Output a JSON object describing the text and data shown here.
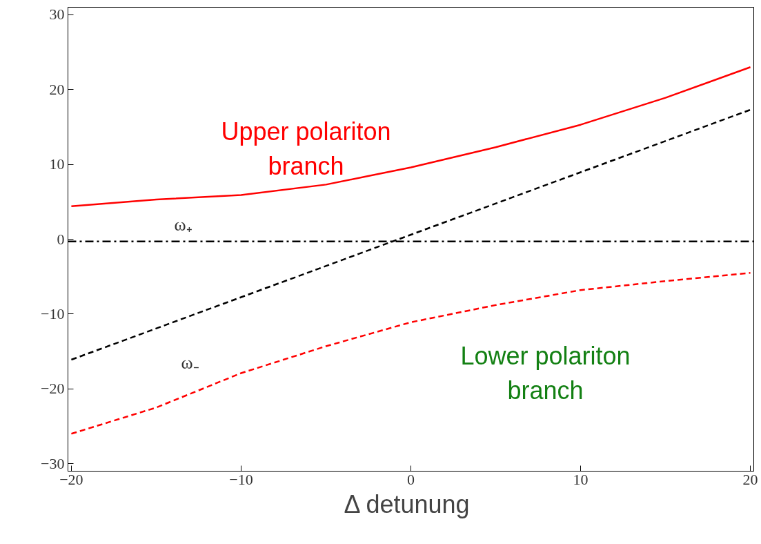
{
  "chart_data": {
    "type": "line",
    "xlabel": "Δ  detunung",
    "x": [
      -20,
      -15,
      -10,
      -5,
      0,
      5,
      10,
      15,
      20
    ],
    "series": [
      {
        "color": "#ff0000",
        "line_style": "solid",
        "values": [
          4.4,
          5.3,
          5.9,
          7.3,
          9.6,
          12.3,
          15.3,
          18.9,
          23
        ]
      },
      {
        "color": "#ff0000",
        "line_style": "dashed",
        "values": [
          -26,
          -22.5,
          -17.9,
          -14.3,
          -11.1,
          -8.8,
          -6.8,
          -5.6,
          -4.5
        ]
      },
      {
        "color": "#000000",
        "line_style": "dashed",
        "x": [
          -20,
          20
        ],
        "values": [
          -16.1,
          17.3
        ]
      }
    ],
    "ref_lines": [
      {
        "axis": "y",
        "value": -0.3,
        "color": "#000000",
        "line_style": "dashdot"
      }
    ],
    "annotations": [
      "Upper polariton\nbranch",
      "ω₊",
      "ω₋",
      "Lower polariton\nbranch"
    ],
    "xlim": [
      -20.2,
      20.2
    ],
    "ylim": [
      -31,
      31
    ],
    "xticks": [
      {
        "value": -20,
        "label": "−20"
      },
      {
        "value": -10,
        "label": "−10"
      },
      0,
      10,
      20
    ],
    "yticks": [
      {
        "value": -30,
        "label": "−30"
      },
      {
        "value": -20,
        "label": "−20"
      },
      {
        "value": -10,
        "label": "−10"
      },
      0,
      10,
      20,
      30
    ],
    "grid": false,
    "marker": "none"
  }
}
